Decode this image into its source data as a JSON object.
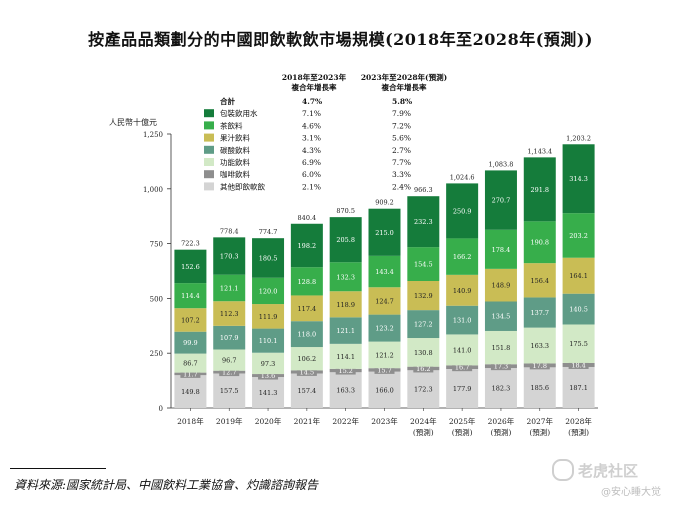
{
  "title": "按產品品類劃分的中國即飲軟飲市場規模(2018年至2028年(預測))",
  "source": "資料來源:國家統計局、中國飲料工業協會、灼識諮詢報告",
  "watermark": "老虎社区",
  "watermark_sub": "@安心睡大觉",
  "chart_data": {
    "type": "bar",
    "stacked": true,
    "ylabel": "人民幣十億元",
    "ylim": [
      0,
      1250
    ],
    "yticks": [
      "0",
      "250",
      "500",
      "750",
      "1,000",
      "1,250"
    ],
    "grid": false,
    "categories": [
      "2018年",
      "2019年",
      "2020年",
      "2021年",
      "2022年",
      "2023年",
      "2024年\n(預測)",
      "2025年\n(預測)",
      "2026年\n(預測)",
      "2027年\n(預測)",
      "2028年\n(預測)"
    ],
    "totals": [
      "722.3",
      "778.4",
      "774.7",
      "840.4",
      "870.5",
      "909.2",
      "966.3",
      "1,024.6",
      "1,083.8",
      "1,143.4",
      "1,203.2"
    ],
    "legend": {
      "header_a": "2018年至2023年\n複合年增長率",
      "header_b": "2023年至2028年(預測)\n複合年增長率",
      "total_row": {
        "name": "合計",
        "cagr_a": "4.7%",
        "cagr_b": "5.8%"
      }
    },
    "series": [
      {
        "name": "其他即飲軟飲",
        "color": "#d4d4d4",
        "cagr_a": "2.1%",
        "cagr_b": "2.4%",
        "values": [
          149.8,
          157.5,
          141.3,
          157.4,
          163.3,
          166.0,
          172.3,
          177.9,
          182.3,
          185.6,
          187.1
        ]
      },
      {
        "name": "咖啡飲料",
        "color": "#8e8e8e",
        "cagr_a": "6.0%",
        "cagr_b": "3.3%",
        "values": [
          11.7,
          12.7,
          13.6,
          14.5,
          15.2,
          15.7,
          16.2,
          16.7,
          17.3,
          17.8,
          18.4
        ]
      },
      {
        "name": "功能飲料",
        "color": "#d2e9c6",
        "cagr_a": "6.9%",
        "cagr_b": "7.7%",
        "values": [
          86.7,
          96.7,
          97.3,
          106.2,
          114.1,
          121.2,
          130.8,
          141.0,
          151.8,
          163.3,
          175.5
        ]
      },
      {
        "name": "碳酸飲料",
        "color": "#5f9c87",
        "cagr_a": "4.3%",
        "cagr_b": "2.7%",
        "values": [
          99.9,
          107.9,
          110.1,
          118.0,
          121.1,
          123.2,
          127.2,
          131.0,
          134.5,
          137.7,
          140.5
        ]
      },
      {
        "name": "果汁飲料",
        "color": "#c9bd55",
        "cagr_a": "3.1%",
        "cagr_b": "5.6%",
        "values": [
          107.2,
          112.3,
          111.9,
          117.4,
          118.9,
          124.7,
          132.9,
          140.9,
          148.9,
          156.4,
          164.1
        ]
      },
      {
        "name": "茶飲料",
        "color": "#37ae4b",
        "cagr_a": "4.6%",
        "cagr_b": "7.2%",
        "values": [
          114.4,
          121.1,
          120.0,
          128.8,
          132.3,
          143.4,
          154.5,
          166.2,
          178.4,
          190.8,
          203.2
        ]
      },
      {
        "name": "包裝飲用水",
        "color": "#157c3b",
        "cagr_a": "7.1%",
        "cagr_b": "7.9%",
        "values": [
          152.6,
          170.3,
          180.5,
          198.2,
          205.8,
          215.0,
          232.3,
          250.9,
          270.7,
          291.8,
          314.3
        ]
      }
    ]
  }
}
